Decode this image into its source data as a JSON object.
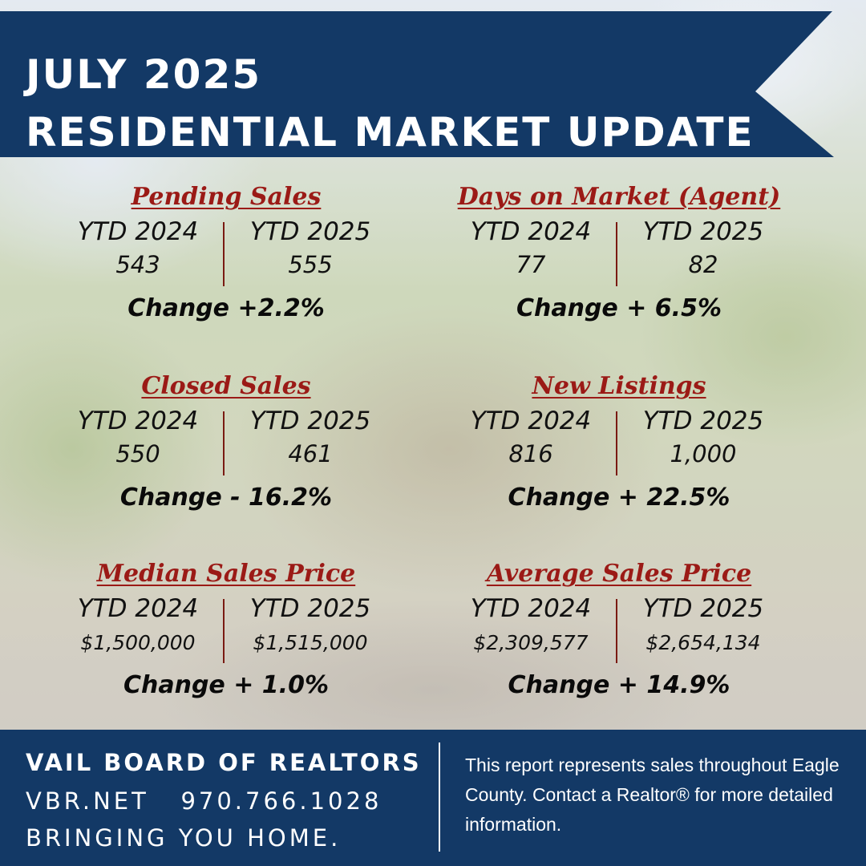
{
  "header": {
    "line1": "JULY 2025",
    "line2": "RESIDENTIAL MARKET UPDATE"
  },
  "stats": [
    {
      "title": "Pending Sales",
      "col1_label": "YTD 2024",
      "col2_label": "YTD 2025",
      "col1_value": "543",
      "col2_value": "555",
      "change": "Change +2.2%"
    },
    {
      "title": "Days on Market (Agent)",
      "col1_label": "YTD 2024",
      "col2_label": "YTD 2025",
      "col1_value": "77",
      "col2_value": "82",
      "change": "Change + 6.5%"
    },
    {
      "title": "Closed Sales",
      "col1_label": "YTD 2024",
      "col2_label": "YTD 2025",
      "col1_value": "550",
      "col2_value": "461",
      "change": "Change - 16.2%"
    },
    {
      "title": "New Listings",
      "col1_label": "YTD 2024",
      "col2_label": "YTD 2025",
      "col1_value": "816",
      "col2_value": "1,000",
      "change": "Change + 22.5%"
    },
    {
      "title": "Median Sales Price",
      "col1_label": "YTD 2024",
      "col2_label": "YTD 2025",
      "col1_value": "$1,500,000",
      "col2_value": "$1,515,000",
      "change": "Change + 1.0%"
    },
    {
      "title": "Average Sales Price",
      "col1_label": "YTD 2024",
      "col2_label": "YTD 2025",
      "col1_value": "$2,309,577",
      "col2_value": "$2,654,134",
      "change": "Change + 14.9%"
    }
  ],
  "footer": {
    "org_name": "VAIL BOARD OF REALTORS",
    "contact": "VBR.NET   970.766.1028",
    "tagline": "BRINGING YOU HOME.",
    "note": "This report represents sales throughout Eagle County. Contact a Realtor® for more detailed information."
  },
  "colors": {
    "navy": "#133966",
    "title_red": "#9b1a16"
  }
}
